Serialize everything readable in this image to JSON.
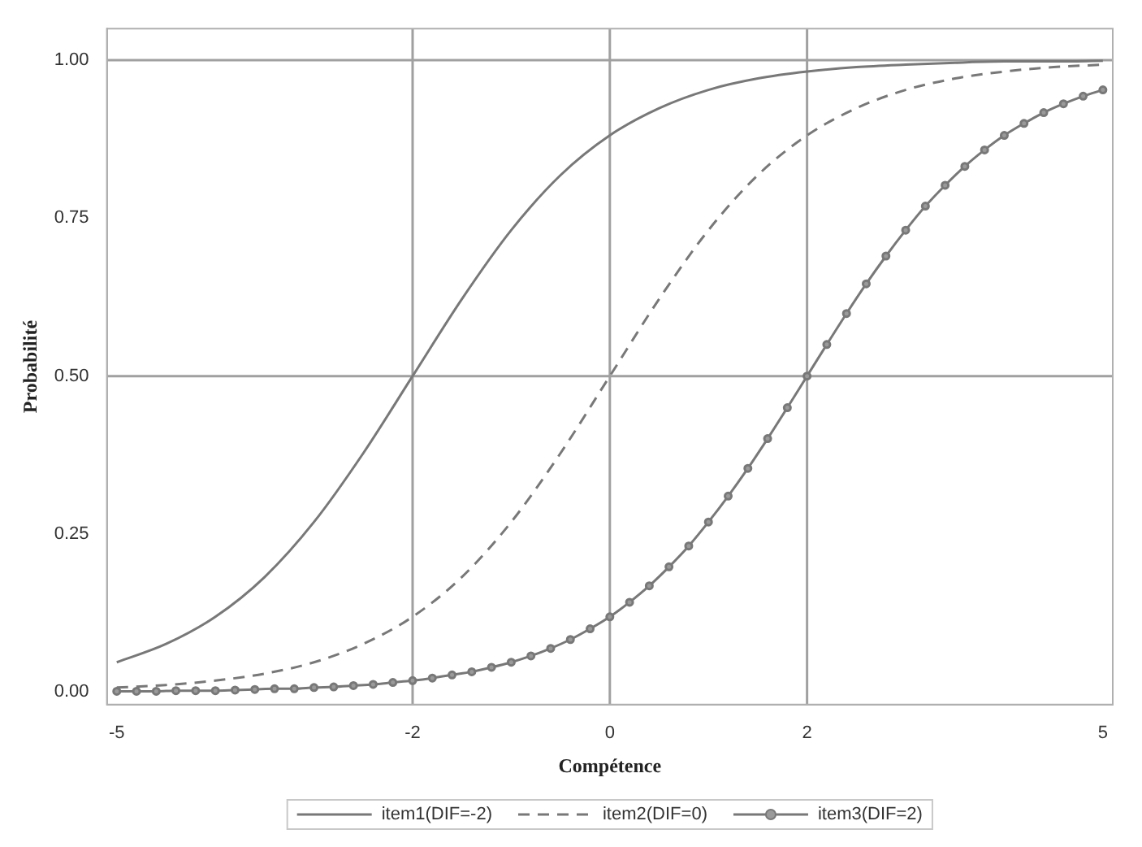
{
  "chart_data": {
    "type": "line",
    "xlabel": "Compétence",
    "ylabel": "Probabilité",
    "xlim": [
      -5.1,
      5.1
    ],
    "ylim": [
      -0.02,
      1.05
    ],
    "xticks": [
      -5,
      -2,
      0,
      2,
      5
    ],
    "yticks": [
      {
        "value": 0,
        "label": "0.00"
      },
      {
        "value": 0.25,
        "label": "0.25"
      },
      {
        "value": 0.5,
        "label": "0.50"
      },
      {
        "value": 0.75,
        "label": "0.75"
      },
      {
        "value": 1,
        "label": "1.00"
      }
    ],
    "grid": false,
    "legend": "bottom",
    "ref_lines": [
      {
        "axis": "x",
        "value": -2,
        "color": "#a0a0a0"
      },
      {
        "axis": "x",
        "value": 0,
        "color": "#a0a0a0"
      },
      {
        "axis": "x",
        "value": 2,
        "color": "#a0a0a0"
      },
      {
        "axis": "y",
        "value": 0.5,
        "color": "#a0a0a0"
      },
      {
        "axis": "y",
        "value": 1,
        "color": "#a0a0a0"
      }
    ],
    "series": [
      {
        "name": "item1(DIF=-2)",
        "color": "#787878",
        "line_style": "solid",
        "marker": "none",
        "x": [
          -5,
          -4.5,
          -4,
          -3.5,
          -3,
          -2.5,
          -2,
          -1.5,
          -1,
          -0.5,
          0,
          0.5,
          1,
          1.5,
          2,
          2.5,
          3,
          3.5,
          4,
          4.5,
          5
        ],
        "values": [
          0.047,
          0.076,
          0.119,
          0.182,
          0.269,
          0.378,
          0.5,
          0.622,
          0.731,
          0.818,
          0.881,
          0.924,
          0.953,
          0.971,
          0.982,
          0.989,
          0.993,
          0.996,
          0.998,
          0.998,
          0.999
        ]
      },
      {
        "name": "item2(DIF=0)",
        "color": "#787878",
        "line_style": "dashed",
        "marker": "none",
        "x": [
          -5,
          -4.5,
          -4,
          -3.5,
          -3,
          -2.5,
          -2,
          -1.5,
          -1,
          -0.5,
          0,
          0.5,
          1,
          1.5,
          2,
          2.5,
          3,
          3.5,
          4,
          4.5,
          5
        ],
        "values": [
          0.007,
          0.011,
          0.018,
          0.029,
          0.047,
          0.076,
          0.119,
          0.182,
          0.269,
          0.378,
          0.5,
          0.622,
          0.731,
          0.818,
          0.881,
          0.924,
          0.953,
          0.971,
          0.982,
          0.989,
          0.993
        ]
      },
      {
        "name": "item3(DIF=2)",
        "color": "#787878",
        "line_style": "solid",
        "marker": "circle",
        "x": [
          -5,
          -4.8,
          -4.6,
          -4.4,
          -4.2,
          -4,
          -3.8,
          -3.6,
          -3.4,
          -3.2,
          -3,
          -2.8,
          -2.6,
          -2.4,
          -2.2,
          -2,
          -1.8,
          -1.6,
          -1.4,
          -1.2,
          -1,
          -0.8,
          -0.6,
          -0.4,
          -0.2,
          0,
          0.2,
          0.4,
          0.6,
          0.8,
          1,
          1.2,
          1.4,
          1.6,
          1.8,
          2,
          2.2,
          2.4,
          2.6,
          2.8,
          3,
          3.2,
          3.4,
          3.6,
          3.8,
          4,
          4.2,
          4.4,
          4.6,
          4.8,
          5
        ],
        "values": [
          0.001,
          0.001,
          0.001,
          0.002,
          0.002,
          0.002,
          0.003,
          0.004,
          0.005,
          0.005,
          0.007,
          0.008,
          0.01,
          0.012,
          0.015,
          0.018,
          0.022,
          0.027,
          0.032,
          0.039,
          0.047,
          0.057,
          0.069,
          0.083,
          0.1,
          0.119,
          0.142,
          0.168,
          0.198,
          0.231,
          0.269,
          0.31,
          0.354,
          0.401,
          0.45,
          0.5,
          0.55,
          0.599,
          0.646,
          0.69,
          0.731,
          0.769,
          0.802,
          0.832,
          0.858,
          0.881,
          0.9,
          0.917,
          0.931,
          0.943,
          0.953
        ]
      }
    ]
  }
}
